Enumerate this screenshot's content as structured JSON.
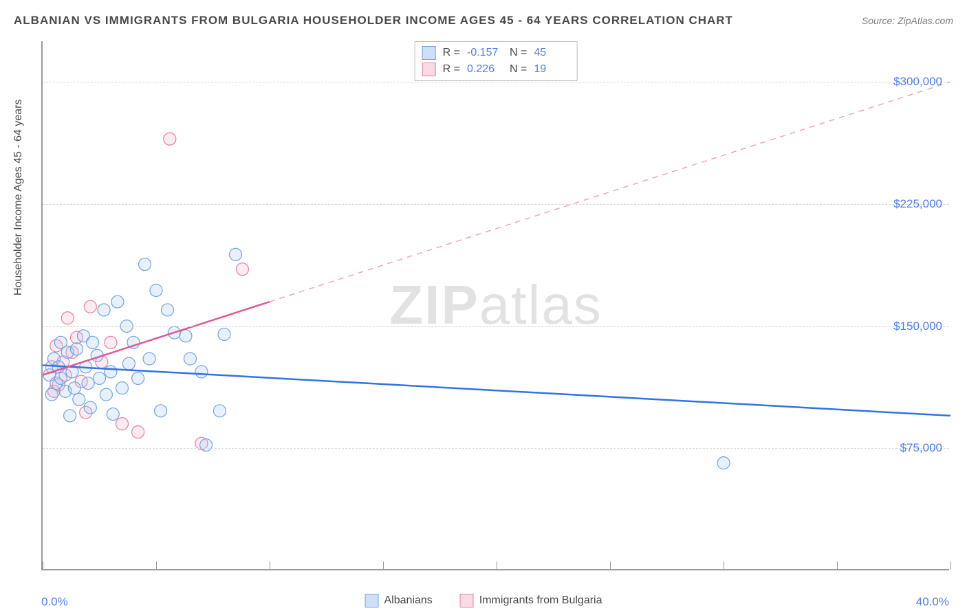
{
  "title": "ALBANIAN VS IMMIGRANTS FROM BULGARIA HOUSEHOLDER INCOME AGES 45 - 64 YEARS CORRELATION CHART",
  "source": "Source: ZipAtlas.com",
  "watermark_a": "ZIP",
  "watermark_b": "atlas",
  "y_axis_label": "Householder Income Ages 45 - 64 years",
  "chart": {
    "type": "scatter",
    "xlim": [
      0,
      40
    ],
    "ylim": [
      0,
      325000
    ],
    "x_ticks": [
      0,
      5,
      10,
      15,
      20,
      25,
      30,
      35,
      40
    ],
    "x_tick_labels": {
      "start": "0.0%",
      "end": "40.0%"
    },
    "y_gridlines": [
      75000,
      150000,
      225000,
      300000
    ],
    "y_tick_labels": [
      "$75,000",
      "$150,000",
      "$225,000",
      "$300,000"
    ],
    "background_color": "#ffffff",
    "grid_color": "#d8d8d8",
    "axis_color": "#9a9a9a",
    "tick_label_color": "#4f7ef2",
    "marker_radius": 9,
    "marker_stroke_width": 1.2,
    "marker_fill_opacity": 0.28,
    "series": [
      {
        "name": "Albanians",
        "color_stroke": "#6fa3e8",
        "color_fill": "#a9c9f2",
        "swatch_border": "#6fa3e8",
        "swatch_fill": "#cde0f7",
        "R": "-0.157",
        "N": "45",
        "trend": {
          "x1": 0,
          "y1": 126000,
          "x2": 40,
          "y2": 95000,
          "color": "#2f74e0",
          "width": 2.5,
          "dash": "none"
        },
        "points": [
          [
            0.3,
            120000
          ],
          [
            0.4,
            108000
          ],
          [
            0.5,
            130000
          ],
          [
            0.6,
            115000
          ],
          [
            0.7,
            125000
          ],
          [
            0.8,
            118000
          ],
          [
            0.8,
            140000
          ],
          [
            1.0,
            110000
          ],
          [
            1.1,
            134000
          ],
          [
            1.2,
            95000
          ],
          [
            1.3,
            122000
          ],
          [
            1.4,
            112000
          ],
          [
            1.5,
            136000
          ],
          [
            1.6,
            105000
          ],
          [
            1.8,
            144000
          ],
          [
            1.9,
            125000
          ],
          [
            2.0,
            115000
          ],
          [
            2.1,
            100000
          ],
          [
            2.2,
            140000
          ],
          [
            2.4,
            132000
          ],
          [
            2.5,
            118000
          ],
          [
            2.7,
            160000
          ],
          [
            2.8,
            108000
          ],
          [
            3.0,
            122000
          ],
          [
            3.1,
            96000
          ],
          [
            3.3,
            165000
          ],
          [
            3.5,
            112000
          ],
          [
            3.7,
            150000
          ],
          [
            3.8,
            127000
          ],
          [
            4.0,
            140000
          ],
          [
            4.2,
            118000
          ],
          [
            4.5,
            188000
          ],
          [
            4.7,
            130000
          ],
          [
            5.0,
            172000
          ],
          [
            5.2,
            98000
          ],
          [
            5.5,
            160000
          ],
          [
            5.8,
            146000
          ],
          [
            6.3,
            144000
          ],
          [
            6.5,
            130000
          ],
          [
            7.0,
            122000
          ],
          [
            7.2,
            77000
          ],
          [
            7.8,
            98000
          ],
          [
            8.0,
            145000
          ],
          [
            8.5,
            194000
          ],
          [
            30.0,
            66000
          ]
        ]
      },
      {
        "name": "Immigrants from Bulgaria",
        "color_stroke": "#e87ca0",
        "color_fill": "#f4bcd0",
        "swatch_border": "#e87ca0",
        "swatch_fill": "#f9dbe6",
        "R": "0.226",
        "N": "19",
        "trend_solid": {
          "x1": 0,
          "y1": 120000,
          "x2": 10,
          "y2": 165000,
          "color": "#e05894",
          "width": 2.5
        },
        "trend_dashed": {
          "x1": 10,
          "y1": 165000,
          "x2": 40,
          "y2": 300000,
          "color": "#f0a3c0",
          "width": 1.5,
          "dash": "8 7"
        },
        "points": [
          [
            0.4,
            125000
          ],
          [
            0.5,
            110000
          ],
          [
            0.6,
            138000
          ],
          [
            0.7,
            114000
          ],
          [
            0.9,
            128000
          ],
          [
            1.0,
            120000
          ],
          [
            1.1,
            155000
          ],
          [
            1.3,
            134000
          ],
          [
            1.5,
            143000
          ],
          [
            1.7,
            116000
          ],
          [
            1.9,
            97000
          ],
          [
            2.1,
            162000
          ],
          [
            2.6,
            128000
          ],
          [
            3.0,
            140000
          ],
          [
            3.5,
            90000
          ],
          [
            4.2,
            85000
          ],
          [
            5.6,
            265000
          ],
          [
            7.0,
            78000
          ],
          [
            8.8,
            185000
          ]
        ]
      }
    ]
  },
  "stats_labels": {
    "R": "R =",
    "N": "N ="
  },
  "legend": [
    "Albanians",
    "Immigrants from Bulgaria"
  ]
}
